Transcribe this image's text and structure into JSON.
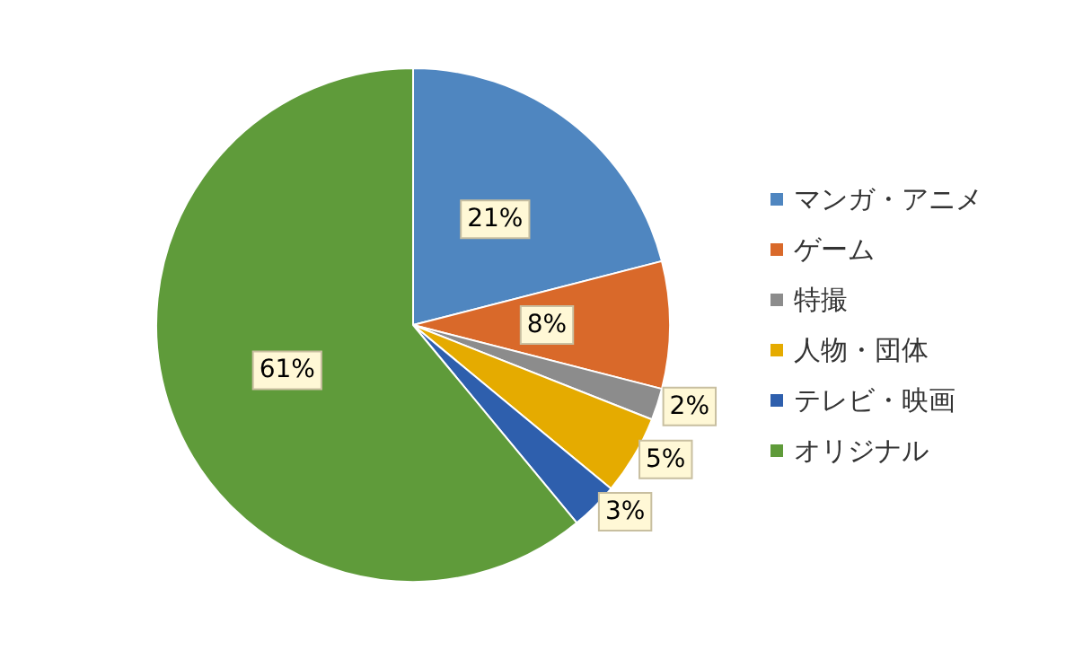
{
  "chart_data": {
    "type": "pie",
    "categories": [
      "マンガ・アニメ",
      "ゲーム",
      "特撮",
      "人物・団体",
      "テレビ・映画",
      "オリジナル"
    ],
    "values": [
      21,
      8,
      2,
      5,
      3,
      61
    ],
    "colors": [
      "#4f86c0",
      "#d9692a",
      "#8c8c8c",
      "#e5ab00",
      "#2e5fad",
      "#5f9b3a"
    ],
    "value_labels": [
      "21%",
      "8%",
      "2%",
      "5%",
      "3%",
      "61%"
    ],
    "legend": "right"
  }
}
